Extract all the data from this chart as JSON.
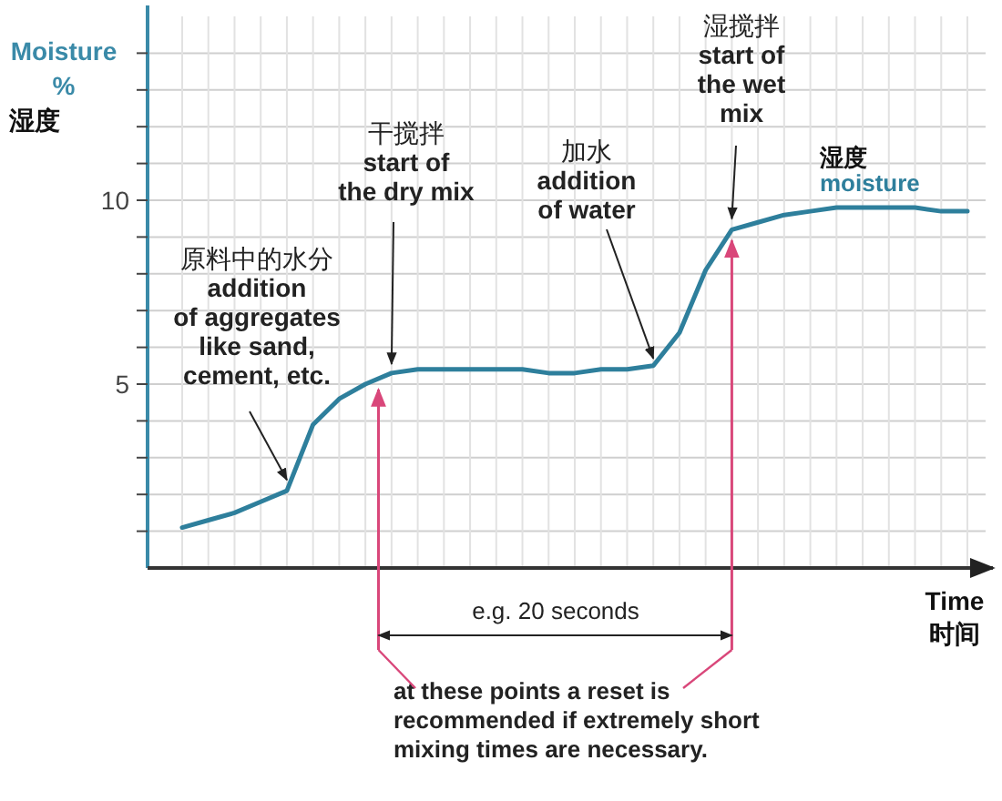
{
  "chart_data": {
    "type": "line",
    "ylabel": "Moisture\n%\n湿度",
    "xlabel": "Time\n时间",
    "categories": [
      null,
      null,
      null,
      null,
      null,
      null,
      null,
      null,
      null,
      null,
      null,
      null,
      null,
      null,
      null,
      null,
      null,
      null,
      null,
      null,
      null,
      null,
      null,
      null,
      null,
      null,
      null,
      null,
      null,
      null,
      null
    ],
    "series": [
      {
        "name": "湿度\nmoisture",
        "color": "#2e7f9c",
        "values": [
          1.1,
          1.3,
          1.5,
          1.8,
          2.1,
          3.9,
          4.6,
          5.0,
          5.3,
          5.4,
          5.4,
          5.4,
          5.4,
          5.4,
          5.3,
          5.3,
          5.4,
          5.4,
          5.5,
          6.4,
          8.1,
          9.2,
          9.4,
          9.6,
          9.7,
          9.8,
          9.8,
          9.8,
          9.8,
          9.7,
          9.7
        ]
      }
    ],
    "ylim": [
      0,
      15
    ],
    "yticks": [
      {
        "value": 1,
        "label": null
      },
      {
        "value": 2,
        "label": null
      },
      {
        "value": 3,
        "label": null
      },
      {
        "value": 4,
        "label": null
      },
      5,
      {
        "value": 6,
        "label": null
      },
      {
        "value": 7,
        "label": null
      },
      {
        "value": 8,
        "label": null
      },
      {
        "value": 9,
        "label": null
      },
      10,
      {
        "value": 11,
        "label": null
      },
      {
        "value": 12,
        "label": null
      },
      {
        "value": 13,
        "label": null
      },
      {
        "value": 14,
        "label": null
      }
    ],
    "grid": true,
    "annotations": [
      "原料中的水分\naddition\nof aggregates\nlike sand,\ncement, etc.",
      "干搅拌\nstart of\nthe dry mix",
      "加水\naddition\nof water",
      "湿搅拌\nstart of\nthe wet\nmix",
      "e.g. 20 seconds",
      "at these points a reset is\nrecommended if extremely short\nmixing times are necessary."
    ]
  }
}
